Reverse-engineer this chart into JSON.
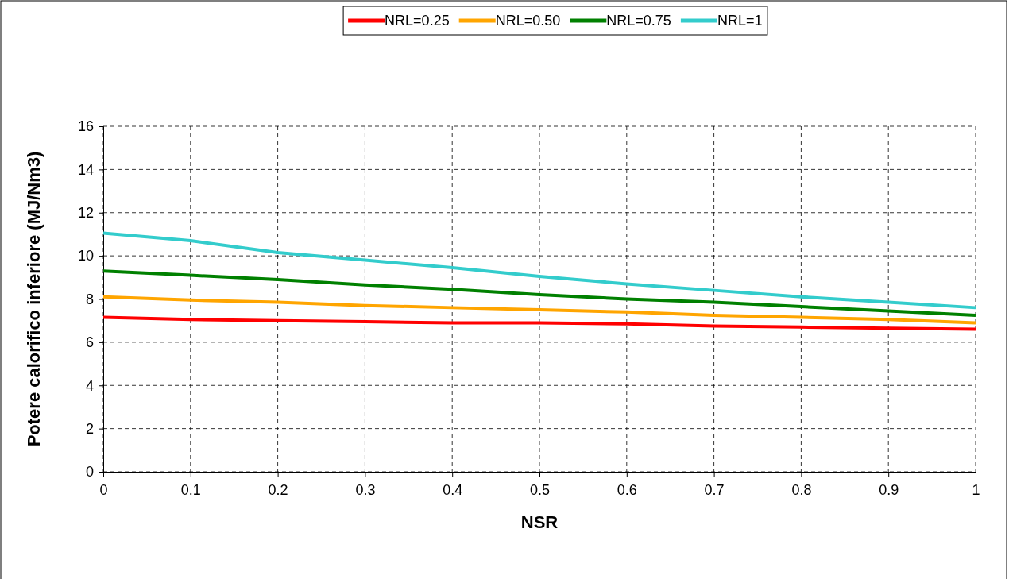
{
  "chart_data": {
    "type": "line",
    "xlabel": "NSR",
    "ylabel": "Potere calorifico inferiore (MJ/Nm3)",
    "x": [
      0,
      0.1,
      0.2,
      0.3,
      0.4,
      0.5,
      0.6,
      0.7,
      0.8,
      0.9,
      1
    ],
    "series": [
      {
        "name": "NRL=0.25",
        "color": "#ff0000",
        "values": [
          7.15,
          7.05,
          7.0,
          6.95,
          6.9,
          6.9,
          6.85,
          6.75,
          6.7,
          6.65,
          6.6
        ]
      },
      {
        "name": "NRL=0.50",
        "color": "#ffa500",
        "values": [
          8.1,
          7.95,
          7.85,
          7.7,
          7.6,
          7.5,
          7.4,
          7.25,
          7.15,
          7.05,
          6.9
        ]
      },
      {
        "name": "NRL=0.75",
        "color": "#008000",
        "values": [
          9.3,
          9.1,
          8.9,
          8.65,
          8.45,
          8.2,
          8.0,
          7.85,
          7.65,
          7.45,
          7.25
        ]
      },
      {
        "name": "NRL=1",
        "color": "#33cccc",
        "values": [
          11.05,
          10.7,
          10.15,
          9.8,
          9.45,
          9.05,
          8.7,
          8.4,
          8.1,
          7.85,
          7.6
        ]
      }
    ],
    "xlim": [
      0,
      1
    ],
    "xticks": [
      0,
      0.1,
      0.2,
      0.3,
      0.4,
      0.5,
      0.6,
      0.7,
      0.8,
      0.9,
      1
    ],
    "ylim": [
      0,
      16
    ],
    "yticks": [
      0,
      2,
      4,
      6,
      8,
      10,
      12,
      14,
      16
    ],
    "grid": true,
    "legend": "top",
    "marker": "none",
    "line_style": "solid"
  }
}
